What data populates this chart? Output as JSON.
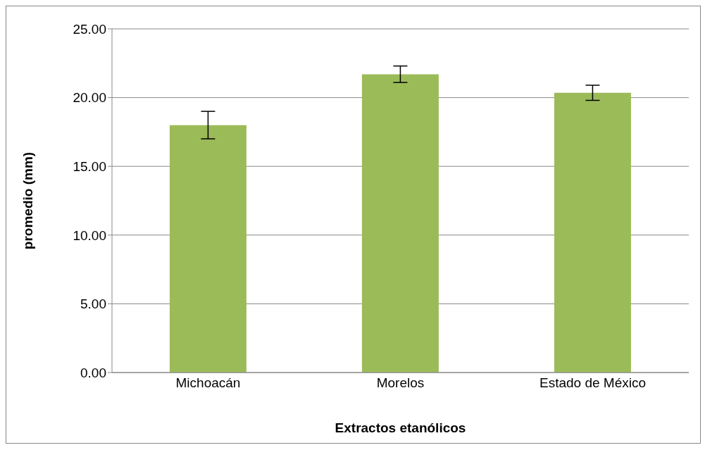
{
  "chart_data": {
    "type": "bar",
    "xlabel": "Extractos etanólicos",
    "ylabel": "promedio (mm)",
    "categories": [
      "Michoacán",
      "Morelos",
      "Estado de México"
    ],
    "values": [
      18.0,
      21.7,
      20.35
    ],
    "errors": [
      1.0,
      0.6,
      0.55
    ],
    "color": "#9bbb59",
    "ylim": [
      0,
      25
    ],
    "yticks": [
      {
        "value": 0,
        "label": "0.00"
      },
      {
        "value": 5,
        "label": "5.00"
      },
      {
        "value": 10,
        "label": "10.00"
      },
      {
        "value": 15,
        "label": "15.00"
      },
      {
        "value": 20,
        "label": "20.00"
      },
      {
        "value": 25,
        "label": "25.00"
      }
    ],
    "grid": "y"
  }
}
